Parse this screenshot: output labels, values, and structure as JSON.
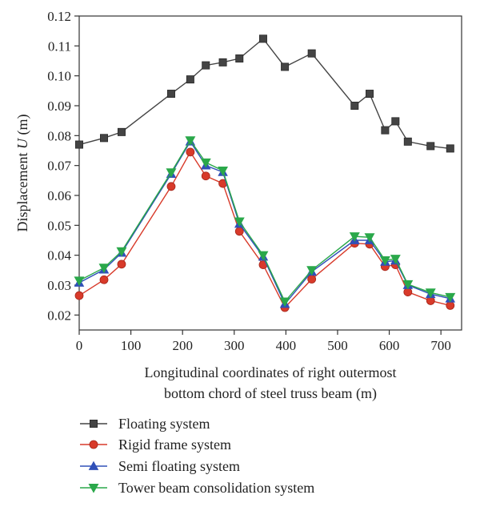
{
  "chart_data": {
    "type": "line",
    "title": "",
    "xlabel_line1": "Longitudinal coordinates of right outermost",
    "xlabel_line2": "bottom chord of steel truss beam (m)",
    "ylabel_prefix": "Displacement ",
    "ylabel_var": "U",
    "ylabel_suffix": " (m)",
    "xlim": [
      0,
      740
    ],
    "ylim": [
      0.015,
      0.12
    ],
    "xticks": [
      0,
      100,
      200,
      300,
      400,
      500,
      600,
      700
    ],
    "yticks": [
      0.02,
      0.03,
      0.04,
      0.05,
      0.06,
      0.07,
      0.08,
      0.09,
      0.1,
      0.11,
      0.12
    ],
    "ytick_labels": [
      "0.02",
      "0.03",
      "0.04",
      "0.05",
      "0.06",
      "0.07",
      "0.08",
      "0.09",
      "0.10",
      "0.11",
      "0.12"
    ],
    "grid": false,
    "legend_position": "bottom",
    "series": [
      {
        "name": "Floating system",
        "color": "#444444",
        "marker": "square",
        "points": [
          [
            0,
            0.077
          ],
          [
            48,
            0.0792
          ],
          [
            82,
            0.0812
          ],
          [
            178,
            0.094
          ],
          [
            215,
            0.0988
          ],
          [
            245,
            0.1035
          ],
          [
            278,
            0.1045
          ],
          [
            310,
            0.1058
          ],
          [
            356,
            0.1124
          ],
          [
            398,
            0.103
          ],
          [
            450,
            0.1075
          ],
          [
            533,
            0.09
          ],
          [
            562,
            0.094
          ],
          [
            592,
            0.0818
          ],
          [
            612,
            0.0848
          ],
          [
            636,
            0.078
          ],
          [
            680,
            0.0765
          ],
          [
            718,
            0.0757
          ]
        ]
      },
      {
        "name": "Rigid frame system",
        "color": "#d83a2a",
        "marker": "circle",
        "points": [
          [
            0,
            0.0265
          ],
          [
            48,
            0.0318
          ],
          [
            82,
            0.037
          ],
          [
            178,
            0.063
          ],
          [
            215,
            0.0745
          ],
          [
            245,
            0.0665
          ],
          [
            278,
            0.064
          ],
          [
            310,
            0.048
          ],
          [
            356,
            0.0368
          ],
          [
            398,
            0.0225
          ],
          [
            450,
            0.032
          ],
          [
            533,
            0.044
          ],
          [
            562,
            0.0437
          ],
          [
            592,
            0.0362
          ],
          [
            612,
            0.0368
          ],
          [
            636,
            0.0277
          ],
          [
            680,
            0.0248
          ],
          [
            718,
            0.0232
          ]
        ]
      },
      {
        "name": "Semi floating system",
        "color": "#3050b8",
        "marker": "triangle-up",
        "points": [
          [
            0,
            0.0308
          ],
          [
            48,
            0.0352
          ],
          [
            82,
            0.0408
          ],
          [
            178,
            0.0672
          ],
          [
            215,
            0.078
          ],
          [
            245,
            0.07
          ],
          [
            278,
            0.0678
          ],
          [
            310,
            0.0505
          ],
          [
            356,
            0.0395
          ],
          [
            398,
            0.0237
          ],
          [
            450,
            0.0345
          ],
          [
            533,
            0.045
          ],
          [
            562,
            0.045
          ],
          [
            592,
            0.0378
          ],
          [
            612,
            0.0382
          ],
          [
            636,
            0.03
          ],
          [
            680,
            0.027
          ],
          [
            718,
            0.0255
          ]
        ]
      },
      {
        "name": "Tower beam consolidation system",
        "color": "#2aa84a",
        "marker": "triangle-down",
        "points": [
          [
            0,
            0.0315
          ],
          [
            48,
            0.0358
          ],
          [
            82,
            0.0413
          ],
          [
            178,
            0.0677
          ],
          [
            215,
            0.0784
          ],
          [
            245,
            0.071
          ],
          [
            278,
            0.0683
          ],
          [
            310,
            0.0513
          ],
          [
            356,
            0.04
          ],
          [
            398,
            0.0245
          ],
          [
            450,
            0.035
          ],
          [
            533,
            0.0463
          ],
          [
            562,
            0.046
          ],
          [
            592,
            0.0383
          ],
          [
            612,
            0.0388
          ],
          [
            636,
            0.0303
          ],
          [
            680,
            0.0275
          ],
          [
            718,
            0.026
          ]
        ]
      }
    ]
  }
}
